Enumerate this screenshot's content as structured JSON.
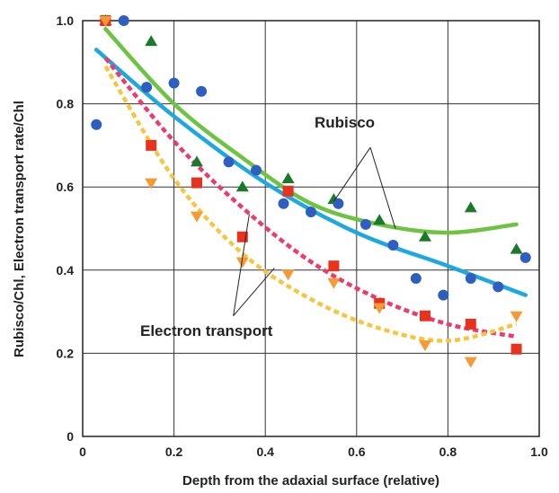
{
  "chart_data": {
    "type": "scatter",
    "title": "",
    "xlabel": "Depth from the adaxial surface (relative)",
    "ylabel": "Rubisco/Chl, Electron transport rate/Chl",
    "xlim": [
      0,
      1.0
    ],
    "ylim": [
      0,
      1.0
    ],
    "x_ticks": [
      "0",
      "0.2",
      "0.4",
      "0.6",
      "0.8",
      "1.0"
    ],
    "y_ticks": [
      "0",
      "0.2",
      "0.4",
      "0.6",
      "0.8",
      "1.0"
    ],
    "grid": true,
    "annotations": [
      {
        "text": "Rubisco",
        "x": 0.73,
        "y": 0.75
      },
      {
        "text": "Electron transport",
        "x": 0.32,
        "y": 0.24
      }
    ],
    "series": [
      {
        "marker": "triangle-up",
        "color": "#1a7a2a",
        "points": [
          [
            0.05,
            1.0
          ],
          [
            0.15,
            0.95
          ],
          [
            0.25,
            0.66
          ],
          [
            0.35,
            0.6
          ],
          [
            0.45,
            0.62
          ],
          [
            0.55,
            0.57
          ],
          [
            0.65,
            0.52
          ],
          [
            0.75,
            0.48
          ],
          [
            0.85,
            0.55
          ],
          [
            0.95,
            0.45
          ]
        ],
        "fit": [
          [
            0.05,
            0.98
          ],
          [
            0.2,
            0.8
          ],
          [
            0.35,
            0.67
          ],
          [
            0.5,
            0.56
          ],
          [
            0.65,
            0.51
          ],
          [
            0.8,
            0.49
          ],
          [
            0.95,
            0.51
          ]
        ],
        "fit_color": "#6cc441",
        "fit_style": "solid"
      },
      {
        "marker": "circle",
        "color": "#2e5fc0",
        "points": [
          [
            0.03,
            0.75
          ],
          [
            0.09,
            1.0
          ],
          [
            0.14,
            0.84
          ],
          [
            0.2,
            0.85
          ],
          [
            0.26,
            0.83
          ],
          [
            0.32,
            0.66
          ],
          [
            0.38,
            0.64
          ],
          [
            0.44,
            0.56
          ],
          [
            0.5,
            0.54
          ],
          [
            0.56,
            0.56
          ],
          [
            0.62,
            0.51
          ],
          [
            0.68,
            0.46
          ],
          [
            0.73,
            0.38
          ],
          [
            0.79,
            0.34
          ],
          [
            0.85,
            0.38
          ],
          [
            0.91,
            0.36
          ],
          [
            0.97,
            0.43
          ]
        ],
        "fit": [
          [
            0.03,
            0.93
          ],
          [
            0.2,
            0.77
          ],
          [
            0.4,
            0.61
          ],
          [
            0.6,
            0.49
          ],
          [
            0.8,
            0.41
          ],
          [
            0.97,
            0.34
          ]
        ],
        "fit_color": "#1fa8e0",
        "fit_style": "solid"
      },
      {
        "marker": "square",
        "color": "#e8321e",
        "points": [
          [
            0.05,
            1.0
          ],
          [
            0.15,
            0.7
          ],
          [
            0.25,
            0.61
          ],
          [
            0.35,
            0.48
          ],
          [
            0.45,
            0.59
          ],
          [
            0.55,
            0.41
          ],
          [
            0.65,
            0.32
          ],
          [
            0.75,
            0.29
          ],
          [
            0.85,
            0.27
          ],
          [
            0.95,
            0.21
          ]
        ],
        "fit": [
          [
            0.05,
            0.91
          ],
          [
            0.2,
            0.71
          ],
          [
            0.35,
            0.55
          ],
          [
            0.5,
            0.42
          ],
          [
            0.65,
            0.33
          ],
          [
            0.8,
            0.27
          ],
          [
            0.95,
            0.24
          ]
        ],
        "fit_color": "#ee3a6a",
        "fit_style": "dashed"
      },
      {
        "marker": "triangle-down",
        "color": "#f59a34",
        "points": [
          [
            0.05,
            1.0
          ],
          [
            0.15,
            0.61
          ],
          [
            0.25,
            0.53
          ],
          [
            0.35,
            0.42
          ],
          [
            0.45,
            0.39
          ],
          [
            0.55,
            0.37
          ],
          [
            0.65,
            0.31
          ],
          [
            0.75,
            0.22
          ],
          [
            0.85,
            0.18
          ],
          [
            0.95,
            0.29
          ]
        ],
        "fit": [
          [
            0.05,
            0.89
          ],
          [
            0.2,
            0.62
          ],
          [
            0.35,
            0.44
          ],
          [
            0.5,
            0.33
          ],
          [
            0.65,
            0.26
          ],
          [
            0.8,
            0.23
          ],
          [
            0.95,
            0.27
          ]
        ],
        "fit_color": "#f7c640",
        "fit_style": "dashed"
      }
    ]
  }
}
